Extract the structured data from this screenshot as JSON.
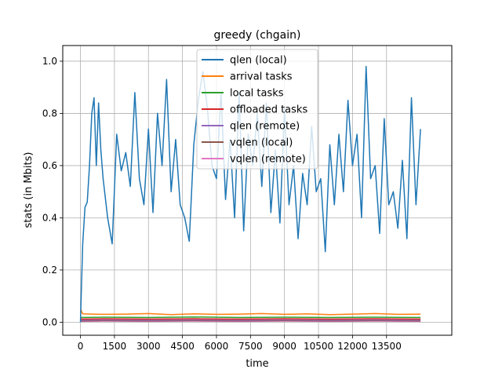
{
  "chart_data": {
    "type": "line",
    "title": "greedy (chgain)",
    "xlabel": "time",
    "ylabel": "stats (in Mbits)",
    "xlim": [
      -780,
      16380
    ],
    "ylim": [
      -0.05,
      1.06
    ],
    "xticks": [
      0,
      1500,
      3000,
      4500,
      6000,
      7500,
      9000,
      10500,
      12000,
      13500
    ],
    "xtick_labels": [
      "0",
      "1500",
      "3000",
      "4500",
      "6000",
      "7500",
      "9000",
      "10500",
      "12000",
      "13500"
    ],
    "yticks": [
      0.0,
      0.2,
      0.4,
      0.6,
      0.8,
      1.0
    ],
    "ytick_labels": [
      "0.0",
      "0.2",
      "0.4",
      "0.6",
      "0.8",
      "1.0"
    ],
    "grid": true,
    "legend_position": "upper center",
    "series": [
      {
        "name": "qlen (local)",
        "color": "#1f77b4",
        "x": [
          0,
          100,
          200,
          300,
          400,
          500,
          600,
          700,
          800,
          900,
          1000,
          1200,
          1400,
          1600,
          1800,
          2000,
          2200,
          2400,
          2600,
          2800,
          3000,
          3200,
          3400,
          3600,
          3800,
          4000,
          4200,
          4400,
          4600,
          4800,
          5000,
          5200,
          5400,
          5600,
          5800,
          6000,
          6200,
          6400,
          6600,
          6800,
          7000,
          7200,
          7400,
          7600,
          7800,
          8000,
          8200,
          8400,
          8600,
          8800,
          9000,
          9200,
          9400,
          9600,
          9800,
          10000,
          10200,
          10400,
          10600,
          10800,
          11000,
          11200,
          11400,
          11600,
          11800,
          12000,
          12200,
          12400,
          12600,
          12800,
          13000,
          13200,
          13400,
          13600,
          13800,
          14000,
          14200,
          14400,
          14600,
          14800,
          15000
        ],
        "y": [
          0.0,
          0.3,
          0.44,
          0.46,
          0.6,
          0.8,
          0.86,
          0.6,
          0.84,
          0.66,
          0.55,
          0.4,
          0.3,
          0.72,
          0.58,
          0.65,
          0.52,
          0.88,
          0.55,
          0.45,
          0.74,
          0.42,
          0.8,
          0.6,
          0.93,
          0.5,
          0.7,
          0.45,
          0.4,
          0.31,
          0.68,
          0.85,
          0.96,
          0.82,
          0.6,
          0.55,
          0.88,
          0.47,
          0.7,
          0.4,
          0.88,
          0.35,
          0.72,
          0.6,
          0.8,
          0.52,
          0.84,
          0.42,
          0.66,
          0.38,
          0.82,
          0.45,
          0.6,
          0.32,
          0.57,
          0.45,
          0.75,
          0.5,
          0.55,
          0.27,
          0.68,
          0.45,
          0.72,
          0.5,
          0.85,
          0.6,
          0.72,
          0.4,
          0.98,
          0.55,
          0.6,
          0.34,
          0.78,
          0.45,
          0.5,
          0.36,
          0.62,
          0.32,
          0.86,
          0.45,
          0.74
        ]
      },
      {
        "name": "arrival tasks",
        "color": "#ff7f0e",
        "x": [
          0,
          100,
          1000,
          2000,
          3000,
          4000,
          5000,
          6000,
          7000,
          8000,
          9000,
          10000,
          11000,
          12000,
          13000,
          14000,
          15000
        ],
        "y": [
          0.05,
          0.032,
          0.03,
          0.031,
          0.033,
          0.029,
          0.032,
          0.03,
          0.031,
          0.033,
          0.03,
          0.032,
          0.029,
          0.031,
          0.033,
          0.03,
          0.031
        ]
      },
      {
        "name": "local tasks",
        "color": "#2ca02c",
        "x": [
          0,
          1000,
          3000,
          5000,
          7000,
          9000,
          11000,
          13000,
          15000
        ],
        "y": [
          0.018,
          0.019,
          0.018,
          0.02,
          0.018,
          0.019,
          0.018,
          0.019,
          0.018
        ]
      },
      {
        "name": "offloaded tasks",
        "color": "#d62728",
        "x": [
          0,
          1000,
          3000,
          5000,
          7000,
          9000,
          11000,
          13000,
          15000
        ],
        "y": [
          0.012,
          0.013,
          0.012,
          0.013,
          0.012,
          0.013,
          0.012,
          0.013,
          0.012
        ]
      },
      {
        "name": "qlen (remote)",
        "color": "#9467bd",
        "x": [
          0,
          1000,
          3000,
          5000,
          7000,
          9000,
          11000,
          13000,
          15000
        ],
        "y": [
          0.008,
          0.009,
          0.008,
          0.009,
          0.008,
          0.009,
          0.008,
          0.009,
          0.008
        ]
      },
      {
        "name": "vqlen (local)",
        "color": "#8c564b",
        "x": [
          0,
          1000,
          3000,
          5000,
          7000,
          9000,
          11000,
          13000,
          15000
        ],
        "y": [
          0.005,
          0.006,
          0.005,
          0.006,
          0.005,
          0.006,
          0.005,
          0.006,
          0.005
        ]
      },
      {
        "name": "vqlen (remote)",
        "color": "#e377c2",
        "x": [
          0,
          1000,
          3000,
          5000,
          7000,
          9000,
          11000,
          13000,
          15000
        ],
        "y": [
          0.003,
          0.004,
          0.003,
          0.004,
          0.003,
          0.004,
          0.003,
          0.004,
          0.003
        ]
      }
    ]
  }
}
